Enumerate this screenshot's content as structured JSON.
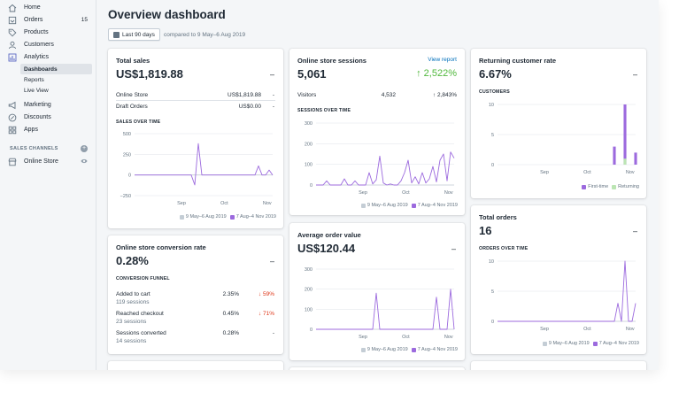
{
  "colors": {
    "accent": "#9c6ade",
    "grey": "#c4cdd5",
    "green": "#50b83c",
    "red": "#de3618",
    "link": "#006fbb",
    "returning": "#bbe5b3"
  },
  "sidebar": {
    "items": [
      {
        "label": "Home",
        "icon": "home-icon"
      },
      {
        "label": "Orders",
        "icon": "orders-icon",
        "badge": "15"
      },
      {
        "label": "Products",
        "icon": "tag-icon"
      },
      {
        "label": "Customers",
        "icon": "person-icon"
      },
      {
        "label": "Analytics",
        "icon": "bar-chart-icon"
      }
    ],
    "analytics_sub": [
      "Dashboards",
      "Reports",
      "Live View"
    ],
    "items2": [
      {
        "label": "Marketing",
        "icon": "megaphone-icon"
      },
      {
        "label": "Discounts",
        "icon": "discount-icon"
      },
      {
        "label": "Apps",
        "icon": "apps-icon"
      }
    ],
    "channels_heading": "SALES CHANNELS",
    "online_store": "Online Store"
  },
  "header": {
    "title": "Overview dashboard",
    "date_range": "Last 90 days",
    "compare": "compared to 9 May–6 Aug 2019"
  },
  "legend": {
    "prev": "9 May–6 Aug 2019",
    "curr": "7 Aug–4 Nov 2019",
    "first_time": "First-time",
    "returning": "Returning"
  },
  "dash": "–",
  "cards": {
    "total_sales": {
      "title": "Total sales",
      "value": "US$1,819.88",
      "rows": [
        {
          "label": "Online Store",
          "value": "US$1,819.88",
          "change": "-"
        },
        {
          "label": "Draft Orders",
          "value": "US$0.00",
          "change": "-"
        }
      ],
      "chart_heading": "SALES OVER TIME"
    },
    "sessions": {
      "title": "Online store sessions",
      "link": "View report",
      "value": "5,061",
      "growth": "↑ 2,522%",
      "row": {
        "label": "Visitors",
        "value": "4,532",
        "change": "↑ 2,843%"
      },
      "chart_heading": "SESSIONS OVER TIME"
    },
    "returning": {
      "title": "Returning customer rate",
      "value": "6.67%",
      "chart_heading": "CUSTOMERS"
    },
    "conversion": {
      "title": "Online store conversion rate",
      "value": "0.28%",
      "funnel_heading": "CONVERSION FUNNEL",
      "rows": [
        {
          "label": "Added to cart",
          "sub": "119 sessions",
          "value": "2.35%",
          "change": "↓ 59%"
        },
        {
          "label": "Reached checkout",
          "sub": "23 sessions",
          "value": "0.45%",
          "change": "↓ 71%"
        },
        {
          "label": "Sessions converted",
          "sub": "14 sessions",
          "value": "0.28%",
          "change": "-"
        }
      ]
    },
    "aov": {
      "title": "Average order value",
      "value": "US$120.44"
    },
    "orders": {
      "title": "Total orders",
      "value": "16",
      "chart_heading": "ORDERS OVER TIME"
    }
  },
  "chart_data": [
    {
      "id": "sales",
      "type": "line",
      "title": "SALES OVER TIME",
      "x_ticks": [
        "Sep",
        "Oct",
        "Nov"
      ],
      "y_ticks": [
        "500",
        "250",
        "0",
        "−250"
      ],
      "ylim": [
        -250,
        500
      ],
      "series": [
        {
          "name": "9 May–6 Aug 2019",
          "values": [
            0,
            0,
            0,
            0,
            0,
            0,
            0,
            0,
            0,
            0,
            0,
            0,
            0,
            0,
            0,
            0,
            0,
            0,
            0,
            0,
            0,
            0,
            0,
            0,
            0,
            0,
            0,
            0,
            0,
            0,
            0,
            0,
            0,
            0,
            0,
            0,
            0,
            0,
            0,
            0
          ]
        },
        {
          "name": "7 Aug–4 Nov 2019",
          "values": [
            0,
            0,
            0,
            0,
            0,
            0,
            0,
            0,
            0,
            0,
            0,
            0,
            0,
            0,
            0,
            0,
            0,
            -120,
            380,
            0,
            0,
            0,
            0,
            0,
            0,
            0,
            0,
            0,
            0,
            0,
            0,
            0,
            0,
            0,
            0,
            110,
            0,
            0,
            60,
            0
          ]
        }
      ]
    },
    {
      "id": "sessions",
      "type": "line",
      "title": "SESSIONS OVER TIME",
      "x_ticks": [
        "Sep",
        "Oct",
        "Nov"
      ],
      "y_ticks": [
        "300",
        "200",
        "100",
        "0"
      ],
      "ylim": [
        0,
        300
      ],
      "series": [
        {
          "name": "9 May–6 Aug 2019",
          "values": [
            0,
            0,
            0,
            0,
            0,
            0,
            0,
            0,
            0,
            0,
            0,
            0,
            0,
            0,
            0,
            0,
            0,
            0,
            0,
            0,
            0,
            0,
            0,
            0,
            0,
            0,
            0,
            0,
            0,
            0,
            0,
            0,
            0,
            0,
            0,
            0,
            0,
            0,
            0,
            0
          ]
        },
        {
          "name": "7 Aug–4 Nov 2019",
          "values": [
            0,
            0,
            0,
            20,
            0,
            0,
            0,
            0,
            30,
            0,
            0,
            20,
            0,
            0,
            0,
            60,
            5,
            25,
            140,
            10,
            0,
            5,
            0,
            0,
            20,
            60,
            120,
            10,
            40,
            5,
            60,
            10,
            30,
            90,
            15,
            120,
            150,
            20,
            160,
            130
          ]
        }
      ]
    },
    {
      "id": "customers",
      "type": "bar",
      "title": "CUSTOMERS",
      "x_ticks": [
        "Sep",
        "Oct",
        "Nov"
      ],
      "y_ticks": [
        "10",
        "5",
        "0"
      ],
      "ylim": [
        0,
        10
      ],
      "series": [
        {
          "name": "First-time",
          "values": [
            0,
            0,
            0,
            0,
            0,
            0,
            0,
            0,
            0,
            0,
            0,
            0,
            0,
            0,
            0,
            0,
            0,
            0,
            0,
            0,
            0,
            0,
            0,
            0,
            0,
            0,
            0,
            0,
            0,
            0,
            0,
            0,
            0,
            3,
            0,
            0,
            10,
            0,
            0,
            2
          ]
        },
        {
          "name": "Returning",
          "values": [
            0,
            0,
            0,
            0,
            0,
            0,
            0,
            0,
            0,
            0,
            0,
            0,
            0,
            0,
            0,
            0,
            0,
            0,
            0,
            0,
            0,
            0,
            0,
            0,
            0,
            0,
            0,
            0,
            0,
            0,
            0,
            0,
            0,
            0,
            0,
            0,
            1,
            0,
            0,
            0
          ]
        }
      ]
    },
    {
      "id": "aov",
      "type": "line",
      "title": "",
      "x_ticks": [
        "Sep",
        "Oct",
        "Nov"
      ],
      "y_ticks": [
        "300",
        "200",
        "100",
        "0"
      ],
      "ylim": [
        0,
        300
      ],
      "series": [
        {
          "name": "9 May–6 Aug 2019",
          "values": [
            0,
            0,
            0,
            0,
            0,
            0,
            0,
            0,
            0,
            0,
            0,
            0,
            0,
            0,
            0,
            0,
            0,
            0,
            0,
            0,
            0,
            0,
            0,
            0,
            0,
            0,
            0,
            0,
            0,
            0,
            0,
            0,
            0,
            0,
            0,
            0,
            0,
            0,
            0,
            0
          ]
        },
        {
          "name": "7 Aug–4 Nov 2019",
          "values": [
            0,
            0,
            0,
            0,
            0,
            0,
            0,
            0,
            0,
            0,
            0,
            0,
            0,
            0,
            0,
            0,
            0,
            180,
            0,
            0,
            0,
            0,
            0,
            0,
            0,
            0,
            0,
            0,
            0,
            0,
            0,
            0,
            0,
            0,
            160,
            0,
            0,
            0,
            200,
            0
          ]
        }
      ]
    },
    {
      "id": "orders",
      "type": "line",
      "title": "ORDERS OVER TIME",
      "x_ticks": [
        "Sep",
        "Oct",
        "Nov"
      ],
      "y_ticks": [
        "10",
        "5",
        "0"
      ],
      "ylim": [
        0,
        10
      ],
      "series": [
        {
          "name": "9 May–6 Aug 2019",
          "values": [
            0,
            0,
            0,
            0,
            0,
            0,
            0,
            0,
            0,
            0,
            0,
            0,
            0,
            0,
            0,
            0,
            0,
            0,
            0,
            0,
            0,
            0,
            0,
            0,
            0,
            0,
            0,
            0,
            0,
            0,
            0,
            0,
            0,
            0,
            0,
            0,
            0,
            0,
            0,
            0
          ]
        },
        {
          "name": "7 Aug–4 Nov 2019",
          "values": [
            0,
            0,
            0,
            0,
            0,
            0,
            0,
            0,
            0,
            0,
            0,
            0,
            0,
            0,
            0,
            0,
            0,
            0,
            0,
            0,
            0,
            0,
            0,
            0,
            0,
            0,
            0,
            0,
            0,
            0,
            0,
            0,
            0,
            0,
            3,
            0,
            10,
            0,
            0,
            3
          ]
        }
      ]
    }
  ]
}
